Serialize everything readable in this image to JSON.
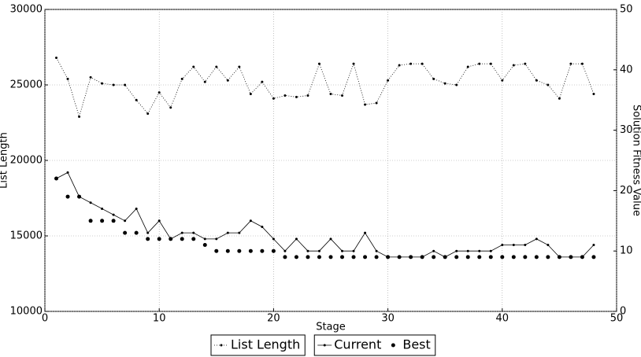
{
  "chart_data": {
    "type": "line",
    "xlabel": "Stage",
    "ylabel": "List Length",
    "y2label": "Solution Fitness Value",
    "x": [
      1,
      2,
      3,
      4,
      5,
      6,
      7,
      8,
      9,
      10,
      11,
      12,
      13,
      14,
      15,
      16,
      17,
      18,
      19,
      20,
      21,
      22,
      23,
      24,
      25,
      26,
      27,
      28,
      29,
      30,
      31,
      32,
      33,
      34,
      35,
      36,
      37,
      38,
      39,
      40,
      41,
      42,
      43,
      44,
      45,
      46,
      47,
      48
    ],
    "series": [
      {
        "name": "List Length",
        "color": "#000000",
        "linestyle": "dotted",
        "marker_size": 1.5,
        "axis": "y",
        "values": [
          26800,
          25400,
          22900,
          25500,
          25100,
          25000,
          25000,
          24000,
          23100,
          24500,
          23500,
          25400,
          26200,
          25200,
          26200,
          25300,
          26200,
          24400,
          25200,
          24100,
          24300,
          24200,
          24300,
          26400,
          24400,
          24300,
          26400,
          23700,
          23800,
          25300,
          26300,
          26400,
          26400,
          25400,
          25100,
          25000,
          26200,
          26400,
          26400,
          25300,
          26300,
          26400,
          25300,
          25000,
          24100,
          26400,
          26400,
          24400
        ]
      },
      {
        "name": "Current",
        "color": "#000000",
        "linestyle": "solid",
        "marker_size": 1.5,
        "axis": "y2",
        "values": [
          22,
          23,
          19,
          18,
          17,
          16,
          15,
          17,
          13,
          15,
          12,
          13,
          13,
          12,
          12,
          13,
          13,
          15,
          14,
          12,
          10,
          12,
          10,
          10,
          12,
          10,
          10,
          13,
          10,
          9,
          9,
          9,
          9,
          10,
          9,
          10,
          10,
          10,
          10,
          11,
          11,
          11,
          12,
          11,
          9,
          9,
          9,
          11
        ]
      },
      {
        "name": "Best",
        "color": "#000000",
        "linestyle": "none",
        "marker_size": 2.5,
        "axis": "y2",
        "values": [
          22,
          19,
          19,
          15,
          15,
          15,
          13,
          13,
          12,
          12,
          12,
          12,
          12,
          11,
          10,
          10,
          10,
          10,
          10,
          10,
          9,
          9,
          9,
          9,
          9,
          9,
          9,
          9,
          9,
          9,
          9,
          9,
          9,
          9,
          9,
          9,
          9,
          9,
          9,
          9,
          9,
          9,
          9,
          9,
          9,
          9,
          9,
          9
        ]
      }
    ],
    "xlim": [
      0,
      50
    ],
    "xticks": [
      0,
      10,
      20,
      30,
      40,
      50
    ],
    "ylim": [
      10000,
      30000
    ],
    "yticks": [
      10000,
      15000,
      20000,
      25000,
      30000
    ],
    "y2lim": [
      0,
      50
    ],
    "y2ticks": [
      0,
      10,
      20,
      30,
      40,
      50
    ],
    "grid": true
  }
}
